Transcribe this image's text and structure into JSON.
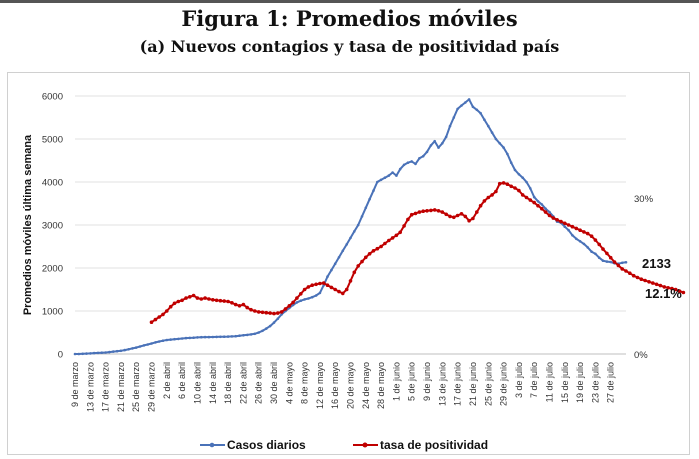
{
  "figure": {
    "title": "Figura 1: Promedios móviles",
    "subtitle": "(a) Nuevos contagios y tasa de positividad país"
  },
  "chart_data": {
    "type": "line",
    "ylabel": "Promedios móviles última semana",
    "ylim": [
      0,
      6000
    ],
    "yticks": [
      "0",
      "1000",
      "2000",
      "3000",
      "4000",
      "5000",
      "6000"
    ],
    "y2_labels": [
      "30%",
      "0%"
    ],
    "x_tick_labels": [
      "9 de marzo",
      "13 de marzo",
      "17 de marzo",
      "21 de marzo",
      "25 de marzo",
      "29 de marzo",
      "2 de abril",
      "6 de abril",
      "10 de abril",
      "14 de abril",
      "18 de abril",
      "22 de abril",
      "26 de abril",
      "30 de abril",
      "4 de mayo",
      "8 de mayo",
      "12 de mayo",
      "16 de mayo",
      "20 de mayo",
      "24 de mayo",
      "28 de mayo",
      "1 de junio",
      "5 de junio",
      "9 de junio",
      "13 de junio",
      "17 de junio",
      "21 de junio",
      "25 de junio",
      "29 de junio",
      "3 de julio",
      "7 de julio",
      "11 de julio",
      "15 de julio",
      "19 de julio",
      "23 de julio",
      "27 de julio"
    ],
    "series": [
      {
        "name": "Casos diarios",
        "color": "#4a72b8",
        "start_index": 0,
        "end_label": "2133",
        "values": [
          0,
          0,
          5,
          10,
          15,
          20,
          25,
          30,
          35,
          45,
          55,
          65,
          75,
          90,
          110,
          130,
          150,
          175,
          200,
          220,
          245,
          270,
          290,
          310,
          325,
          335,
          345,
          350,
          360,
          370,
          375,
          380,
          385,
          390,
          392,
          394,
          395,
          397,
          400,
          402,
          405,
          410,
          415,
          425,
          435,
          445,
          455,
          470,
          500,
          540,
          590,
          650,
          730,
          820,
          920,
          1000,
          1070,
          1140,
          1200,
          1240,
          1270,
          1290,
          1320,
          1360,
          1420,
          1600,
          1800,
          1950,
          2100,
          2250,
          2400,
          2550,
          2700,
          2850,
          3000,
          3200,
          3400,
          3600,
          3800,
          4000,
          4050,
          4100,
          4150,
          4220,
          4150,
          4300,
          4400,
          4450,
          4480,
          4420,
          4550,
          4600,
          4700,
          4850,
          4950,
          4800,
          4900,
          5050,
          5300,
          5500,
          5700,
          5780,
          5850,
          5920,
          5750,
          5680,
          5600,
          5450,
          5300,
          5150,
          5000,
          4900,
          4800,
          4650,
          4450,
          4280,
          4180,
          4100,
          4000,
          3850,
          3650,
          3550,
          3480,
          3380,
          3300,
          3200,
          3080,
          3050,
          2960,
          2880,
          2760,
          2680,
          2620,
          2560,
          2480,
          2380,
          2330,
          2240,
          2170,
          2150,
          2140,
          2110,
          2100,
          2120,
          2133
        ]
      },
      {
        "name": "tasa de positividad",
        "color": "#c00000",
        "start_index": 20,
        "end_label": "12.1%",
        "values": [
          740,
          800,
          860,
          920,
          1000,
          1100,
          1180,
          1220,
          1250,
          1300,
          1330,
          1360,
          1300,
          1280,
          1300,
          1280,
          1260,
          1250,
          1240,
          1230,
          1220,
          1190,
          1150,
          1120,
          1150,
          1080,
          1030,
          1000,
          980,
          970,
          960,
          950,
          940,
          950,
          980,
          1050,
          1120,
          1200,
          1300,
          1400,
          1500,
          1560,
          1600,
          1620,
          1640,
          1650,
          1600,
          1550,
          1500,
          1450,
          1410,
          1500,
          1700,
          1900,
          2050,
          2150,
          2250,
          2330,
          2400,
          2450,
          2500,
          2570,
          2640,
          2700,
          2760,
          2830,
          2980,
          3130,
          3240,
          3270,
          3300,
          3320,
          3330,
          3340,
          3350,
          3330,
          3300,
          3250,
          3200,
          3180,
          3220,
          3260,
          3200,
          3100,
          3150,
          3300,
          3450,
          3560,
          3640,
          3700,
          3780,
          3960,
          3980,
          3950,
          3900,
          3860,
          3800,
          3700,
          3640,
          3580,
          3520,
          3450,
          3380,
          3300,
          3220,
          3160,
          3120,
          3080,
          3040,
          3000,
          2960,
          2920,
          2880,
          2840,
          2800,
          2740,
          2650,
          2550,
          2440,
          2340,
          2240,
          2140,
          2060,
          1980,
          1930,
          1880,
          1820,
          1780,
          1740,
          1710,
          1680,
          1650,
          1620,
          1590,
          1560,
          1540,
          1520,
          1500,
          1460,
          1430
        ]
      }
    ],
    "legend": [
      "Casos diarios",
      "tasa de positividad"
    ]
  }
}
